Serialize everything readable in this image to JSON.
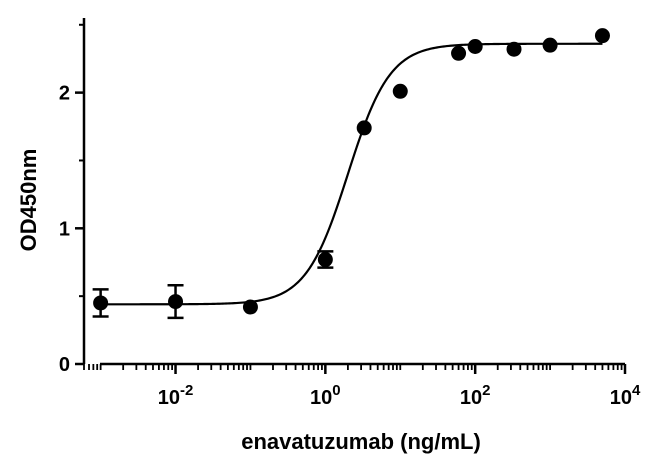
{
  "chart_data": {
    "type": "scatter",
    "title": "",
    "xlabel": "enavatuzumab (ng/mL)",
    "ylabel": "OD450nm",
    "x_scale": "log10",
    "xlim": [
      0.0006,
      10000
    ],
    "ylim": [
      0,
      2.55
    ],
    "x_tick_labels": [
      {
        "base": "10",
        "exp": "-2",
        "value": 0.01
      },
      {
        "base": "10",
        "exp": "0",
        "value": 1
      },
      {
        "base": "10",
        "exp": "2",
        "value": 100
      },
      {
        "base": "10",
        "exp": "4",
        "value": 10000
      }
    ],
    "y_ticks": [
      0,
      1,
      2
    ],
    "y_tick_labels": [
      "0",
      "1",
      "2"
    ],
    "grid": false,
    "legend": "none",
    "series": [
      {
        "points": [
          {
            "x": 0.001,
            "y": 0.45,
            "err": 0.1
          },
          {
            "x": 0.01,
            "y": 0.46,
            "err": 0.12
          },
          {
            "x": 0.1,
            "y": 0.42,
            "err": 0
          },
          {
            "x": 1,
            "y": 0.77,
            "err": 0.06
          },
          {
            "x": 3.3,
            "y": 1.74,
            "err": 0
          },
          {
            "x": 10,
            "y": 2.01,
            "err": 0
          },
          {
            "x": 60,
            "y": 2.29,
            "err": 0
          },
          {
            "x": 100,
            "y": 2.34,
            "err": 0
          },
          {
            "x": 330,
            "y": 2.32,
            "err": 0
          },
          {
            "x": 1000,
            "y": 2.35,
            "err": 0
          },
          {
            "x": 5000,
            "y": 2.42,
            "err": 0
          }
        ]
      }
    ],
    "fit_curve": {
      "model": "4PL",
      "bottom": 0.44,
      "top": 2.36,
      "ec50": 2.0,
      "hill": 1.55,
      "x_range": [
        0.001,
        5000
      ]
    },
    "colors": {
      "marker": "#000000",
      "axis": "#000000",
      "curve": "#000000"
    }
  }
}
